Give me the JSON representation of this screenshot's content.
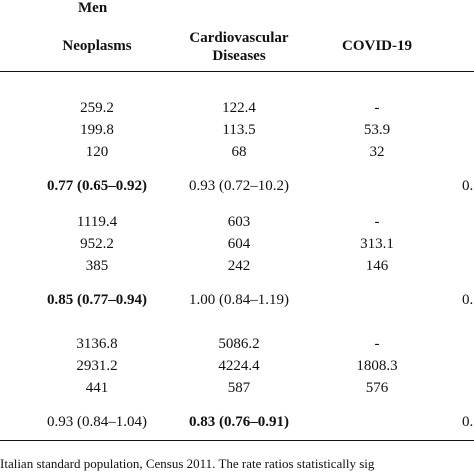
{
  "table": {
    "group_label": "Men",
    "headers": {
      "col1": "Neoplasms",
      "col2_line1": "Cardiovascular",
      "col2_line2": "Diseases",
      "col3": "COVID-19"
    },
    "blocks": [
      {
        "rows": [
          [
            "259.2",
            "122.4",
            "-"
          ],
          [
            "199.8",
            "113.5",
            "53.9"
          ],
          [
            "120",
            "68",
            "32"
          ]
        ],
        "ratio": [
          "0.77 (0.65–0.92)",
          "0.93 (0.72–10.2)",
          "0."
        ],
        "ratio_bold": [
          true,
          false,
          false
        ]
      },
      {
        "rows": [
          [
            "1119.4",
            "603",
            "-"
          ],
          [
            "952.2",
            "604",
            "313.1"
          ],
          [
            "385",
            "242",
            "146"
          ]
        ],
        "ratio": [
          "0.85 (0.77–0.94)",
          "1.00 (0.84–1.19)",
          "0."
        ],
        "ratio_bold": [
          true,
          false,
          false
        ]
      },
      {
        "rows": [
          [
            "3136.8",
            "5086.2",
            "-"
          ],
          [
            "2931.2",
            "4224.4",
            "1808.3"
          ],
          [
            "441",
            "587",
            "576"
          ]
        ],
        "ratio": [
          "0.93 (0.84–1.04)",
          "0.83 (0.76–0.91)",
          "0."
        ],
        "ratio_bold": [
          false,
          true,
          false
        ]
      }
    ],
    "footnote": "Italian standard population, Census 2011. The rate ratios statistically sig"
  }
}
